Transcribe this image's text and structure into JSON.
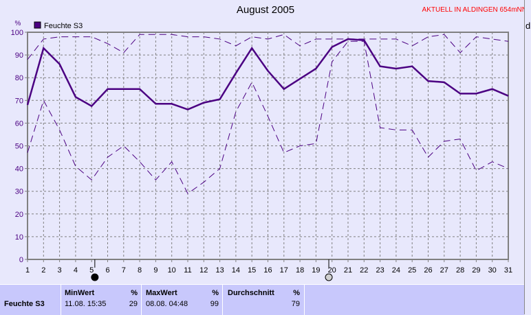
{
  "title": "August 2005",
  "live_label": "AKTUELL IN ALDINGEN 654mNN",
  "right_axis_label": "d",
  "colors": {
    "series": "#4b0082",
    "background": "#e8e8fc",
    "table": "#c8c8fc",
    "live": "#ff0000"
  },
  "chart_data": {
    "type": "line",
    "title": "August 2005",
    "ylabel": "%",
    "ylim": [
      0,
      100
    ],
    "yticks": [
      0,
      10,
      20,
      30,
      40,
      50,
      60,
      70,
      80,
      90,
      100
    ],
    "x": [
      1,
      2,
      3,
      4,
      5,
      6,
      7,
      8,
      9,
      10,
      11,
      12,
      13,
      14,
      15,
      16,
      17,
      18,
      19,
      20,
      21,
      22,
      23,
      24,
      25,
      26,
      27,
      28,
      29,
      30,
      31
    ],
    "grid": true,
    "legend": "top-left",
    "series": [
      {
        "name": "Feuchte S3",
        "style": "solid",
        "values": [
          68,
          93,
          86,
          71.5,
          67.5,
          75,
          75,
          75,
          68.5,
          68.5,
          66,
          69,
          70.5,
          82,
          93,
          83,
          75,
          79.5,
          84,
          93.5,
          97,
          96.5,
          85,
          84,
          85,
          78.5,
          78,
          73,
          73,
          75,
          72
        ]
      },
      {
        "style": "dashed",
        "values": [
          88,
          97,
          98,
          98,
          98,
          95,
          91,
          99,
          99,
          99,
          98,
          98,
          97,
          94,
          98,
          97,
          99,
          94,
          97,
          97,
          97,
          97,
          97,
          97,
          94,
          98,
          99,
          91,
          98,
          97,
          96
        ]
      },
      {
        "style": "dashed",
        "values": [
          47,
          70,
          57,
          41,
          35,
          45,
          50,
          43,
          35,
          43,
          29,
          34,
          40,
          65,
          78,
          63,
          47,
          50,
          51,
          87,
          96,
          96,
          58,
          57,
          57,
          45,
          52,
          53,
          39,
          43,
          40
        ]
      }
    ],
    "moon_phases": [
      {
        "day": 5.2,
        "phase": "new-moon"
      },
      {
        "day": 19.8,
        "phase": "full-moon"
      }
    ]
  },
  "table": {
    "row_label": "Feuchte S3",
    "min": {
      "header": "MinWert",
      "unit": "%",
      "time": "11.08.  15:35",
      "value": "29"
    },
    "max": {
      "header": "MaxWert",
      "unit": "%",
      "time": "08.08.  04:48",
      "value": "99"
    },
    "avg": {
      "header": "Durchschnitt",
      "unit": "%",
      "value": "79"
    }
  }
}
